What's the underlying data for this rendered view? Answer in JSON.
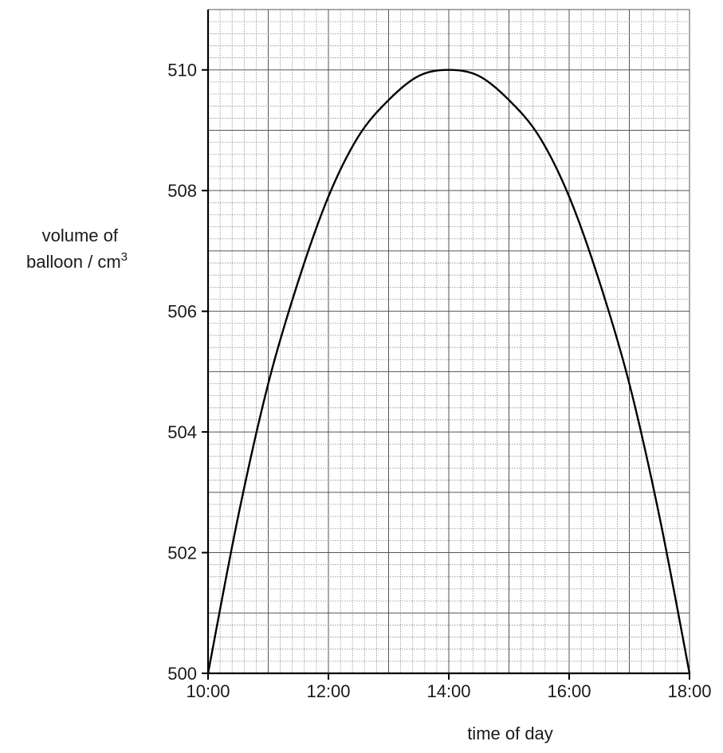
{
  "chart_data": {
    "type": "line",
    "xlabel": "time of day",
    "ylabel_line1": "volume of",
    "ylabel_line2": "balloon / cm",
    "ylabel_sup": "3",
    "x_ticks": [
      "10:00",
      "12:00",
      "14:00",
      "16:00",
      "18:00"
    ],
    "y_ticks": [
      "500",
      "502",
      "504",
      "506",
      "508",
      "510"
    ],
    "xlim": [
      "10:00",
      "18:00"
    ],
    "ylim": [
      500,
      511
    ],
    "grid": true,
    "series": [
      {
        "x": [
          "10:00",
          "10:30",
          "11:00",
          "11:30",
          "12:00",
          "12:30",
          "13:00",
          "13:30",
          "14:00",
          "14:30",
          "15:00",
          "15:30",
          "16:00",
          "16:30",
          "17:00",
          "17:30",
          "18:00"
        ],
        "y": [
          500.0,
          502.6,
          504.8,
          506.5,
          507.9,
          508.9,
          509.5,
          509.9,
          510.0,
          509.9,
          509.5,
          508.9,
          507.9,
          506.5,
          504.8,
          502.6,
          500.0
        ]
      }
    ],
    "line_color": "#000000"
  }
}
